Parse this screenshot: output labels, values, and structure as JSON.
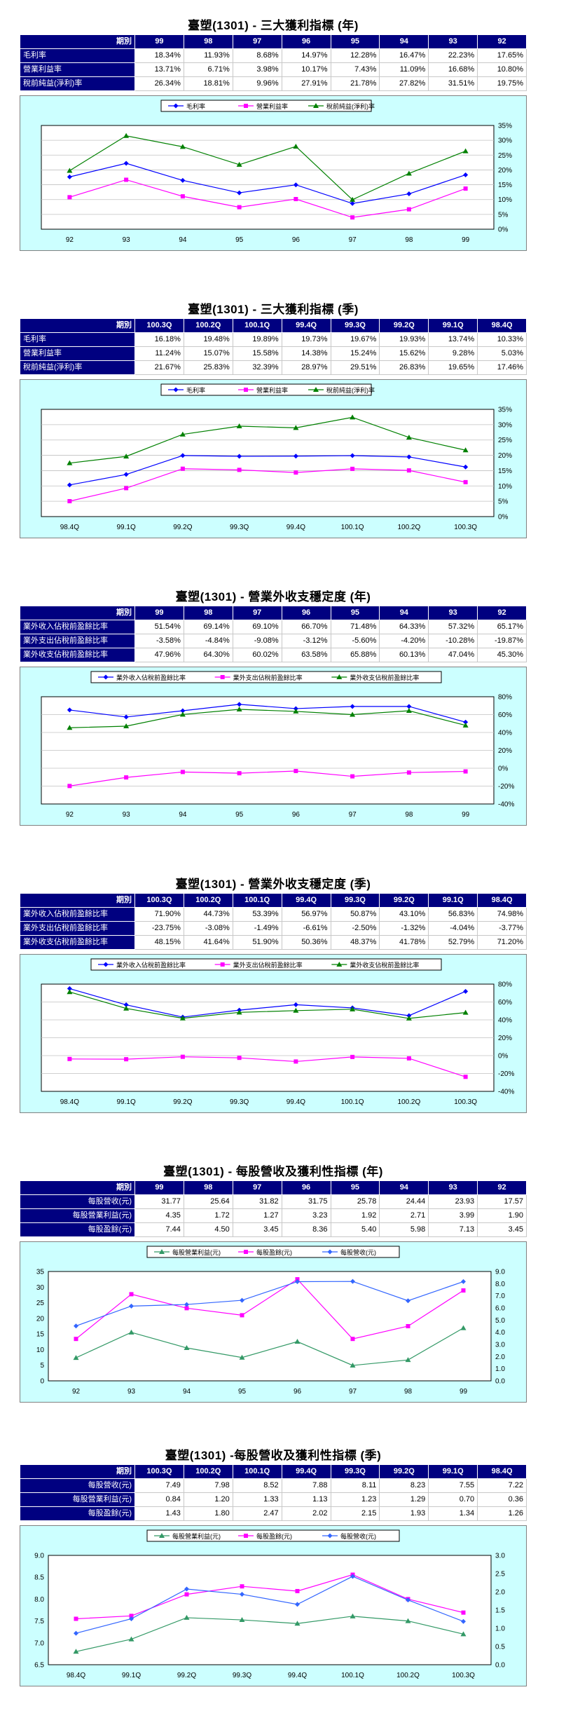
{
  "sections": [
    {
      "title": "臺塑(1301) - 三大獲利指標 (年)",
      "period_label": "期別",
      "label_align": "left",
      "periods": [
        "99",
        "98",
        "97",
        "96",
        "95",
        "94",
        "93",
        "92"
      ],
      "rows": [
        {
          "label": "毛利率",
          "values": [
            "18.34%",
            "11.93%",
            "8.68%",
            "14.97%",
            "12.28%",
            "16.47%",
            "22.23%",
            "17.65%"
          ]
        },
        {
          "label": "營業利益率",
          "values": [
            "13.71%",
            "6.71%",
            "3.98%",
            "10.17%",
            "7.43%",
            "11.09%",
            "16.68%",
            "10.80%"
          ]
        },
        {
          "label": "稅前純益(淨利)率",
          "values": [
            "26.34%",
            "18.81%",
            "9.96%",
            "27.91%",
            "21.78%",
            "27.82%",
            "31.51%",
            "19.75%"
          ]
        }
      ]
    },
    {
      "title": "臺塑(1301) - 三大獲利指標 (季)",
      "period_label": "期別",
      "label_align": "left",
      "periods": [
        "100.3Q",
        "100.2Q",
        "100.1Q",
        "99.4Q",
        "99.3Q",
        "99.2Q",
        "99.1Q",
        "98.4Q"
      ],
      "rows": [
        {
          "label": "毛利率",
          "values": [
            "16.18%",
            "19.48%",
            "19.89%",
            "19.73%",
            "19.67%",
            "19.93%",
            "13.74%",
            "10.33%"
          ]
        },
        {
          "label": "營業利益率",
          "values": [
            "11.24%",
            "15.07%",
            "15.58%",
            "14.38%",
            "15.24%",
            "15.62%",
            "9.28%",
            "5.03%"
          ]
        },
        {
          "label": "稅前純益(淨利)率",
          "values": [
            "21.67%",
            "25.83%",
            "32.39%",
            "28.97%",
            "29.51%",
            "26.83%",
            "19.65%",
            "17.46%"
          ]
        }
      ]
    },
    {
      "title": "臺塑(1301) - 營業外收支穩定度 (年)",
      "period_label": "期別",
      "label_align": "left",
      "periods": [
        "99",
        "98",
        "97",
        "96",
        "95",
        "94",
        "93",
        "92"
      ],
      "rows": [
        {
          "label": "業外收入佔稅前盈餘比率",
          "values": [
            "51.54%",
            "69.14%",
            "69.10%",
            "66.70%",
            "71.48%",
            "64.33%",
            "57.32%",
            "65.17%"
          ]
        },
        {
          "label": "業外支出佔稅前盈餘比率",
          "values": [
            "-3.58%",
            "-4.84%",
            "-9.08%",
            "-3.12%",
            "-5.60%",
            "-4.20%",
            "-10.28%",
            "-19.87%"
          ]
        },
        {
          "label": "業外收支佔稅前盈餘比率",
          "values": [
            "47.96%",
            "64.30%",
            "60.02%",
            "63.58%",
            "65.88%",
            "60.13%",
            "47.04%",
            "45.30%"
          ]
        }
      ]
    },
    {
      "title": "臺塑(1301) - 營業外收支穩定度 (季)",
      "period_label": "期別",
      "label_align": "left",
      "periods": [
        "100.3Q",
        "100.2Q",
        "100.1Q",
        "99.4Q",
        "99.3Q",
        "99.2Q",
        "99.1Q",
        "98.4Q"
      ],
      "rows": [
        {
          "label": "業外收入佔稅前盈餘比率",
          "values": [
            "71.90%",
            "44.73%",
            "53.39%",
            "56.97%",
            "50.87%",
            "43.10%",
            "56.83%",
            "74.98%"
          ]
        },
        {
          "label": "業外支出佔稅前盈餘比率",
          "values": [
            "-23.75%",
            "-3.08%",
            "-1.49%",
            "-6.61%",
            "-2.50%",
            "-1.32%",
            "-4.04%",
            "-3.77%"
          ]
        },
        {
          "label": "業外收支佔稅前盈餘比率",
          "values": [
            "48.15%",
            "41.64%",
            "51.90%",
            "50.36%",
            "48.37%",
            "41.78%",
            "52.79%",
            "71.20%"
          ]
        }
      ]
    },
    {
      "title": "臺塑(1301) - 每股營收及獲利性指標 (年)",
      "period_label": "期別",
      "label_align": "right",
      "periods": [
        "99",
        "98",
        "97",
        "96",
        "95",
        "94",
        "93",
        "92"
      ],
      "rows": [
        {
          "label": "每股營收(元)",
          "values": [
            "31.77",
            "25.64",
            "31.82",
            "31.75",
            "25.78",
            "24.44",
            "23.93",
            "17.57"
          ]
        },
        {
          "label": "每股營業利益(元)",
          "values": [
            "4.35",
            "1.72",
            "1.27",
            "3.23",
            "1.92",
            "2.71",
            "3.99",
            "1.90"
          ]
        },
        {
          "label": "每股盈餘(元)",
          "values": [
            "7.44",
            "4.50",
            "3.45",
            "8.36",
            "5.40",
            "5.98",
            "7.13",
            "3.45"
          ]
        }
      ]
    },
    {
      "title": "臺塑(1301) -每股營收及獲利性指標 (季)",
      "period_label": "期別",
      "label_align": "right",
      "periods": [
        "100.3Q",
        "100.2Q",
        "100.1Q",
        "99.4Q",
        "99.3Q",
        "99.2Q",
        "99.1Q",
        "98.4Q"
      ],
      "rows": [
        {
          "label": "每股營收(元)",
          "values": [
            "7.49",
            "7.98",
            "8.52",
            "7.88",
            "8.11",
            "8.23",
            "7.55",
            "7.22"
          ]
        },
        {
          "label": "每股營業利益(元)",
          "values": [
            "0.84",
            "1.20",
            "1.33",
            "1.13",
            "1.23",
            "1.29",
            "0.70",
            "0.36"
          ]
        },
        {
          "label": "每股盈餘(元)",
          "values": [
            "1.43",
            "1.80",
            "2.47",
            "2.02",
            "2.15",
            "1.93",
            "1.34",
            "1.26"
          ]
        }
      ]
    }
  ],
  "chart_data": [
    {
      "type": "line",
      "categories": [
        "92",
        "93",
        "94",
        "95",
        "96",
        "97",
        "98",
        "99"
      ],
      "series": [
        {
          "name": "毛利率",
          "values": [
            17.65,
            22.23,
            16.47,
            12.28,
            14.97,
            8.68,
            11.93,
            18.34
          ],
          "color": "#0000ff",
          "marker": "diamond"
        },
        {
          "name": "營業利益率",
          "values": [
            10.8,
            16.68,
            11.09,
            7.43,
            10.17,
            3.98,
            6.71,
            13.71
          ],
          "color": "#ff00ff",
          "marker": "square"
        },
        {
          "name": "稅前純益(淨利)率",
          "values": [
            19.75,
            31.51,
            27.82,
            21.78,
            27.91,
            9.96,
            18.81,
            26.34
          ],
          "color": "#008000",
          "marker": "triangle"
        }
      ],
      "y_axis": "right",
      "ylim": [
        0,
        35
      ],
      "yticks": [
        "0%",
        "5%",
        "10%",
        "15%",
        "20%",
        "25%",
        "30%",
        "35%"
      ],
      "legend_position": "top",
      "grid": true
    },
    {
      "type": "line",
      "categories": [
        "98.4Q",
        "99.1Q",
        "99.2Q",
        "99.3Q",
        "99.4Q",
        "100.1Q",
        "100.2Q",
        "100.3Q"
      ],
      "series": [
        {
          "name": "毛利率",
          "values": [
            10.33,
            13.74,
            19.93,
            19.67,
            19.73,
            19.89,
            19.48,
            16.18
          ],
          "color": "#0000ff",
          "marker": "diamond"
        },
        {
          "name": "營業利益率",
          "values": [
            5.03,
            9.28,
            15.62,
            15.24,
            14.38,
            15.58,
            15.07,
            11.24
          ],
          "color": "#ff00ff",
          "marker": "square"
        },
        {
          "name": "稅前純益(淨利)率",
          "values": [
            17.46,
            19.65,
            26.83,
            29.51,
            28.97,
            32.39,
            25.83,
            21.67
          ],
          "color": "#008000",
          "marker": "triangle"
        }
      ],
      "y_axis": "right",
      "ylim": [
        0,
        35
      ],
      "yticks": [
        "0%",
        "5%",
        "10%",
        "15%",
        "20%",
        "25%",
        "30%",
        "35%"
      ],
      "legend_position": "top",
      "grid": true
    },
    {
      "type": "line",
      "categories": [
        "92",
        "93",
        "94",
        "95",
        "96",
        "97",
        "98",
        "99"
      ],
      "series": [
        {
          "name": "業外收入佔稅前盈餘比率",
          "values": [
            65.17,
            57.32,
            64.33,
            71.48,
            66.7,
            69.1,
            69.14,
            51.54
          ],
          "color": "#0000ff",
          "marker": "diamond"
        },
        {
          "name": "業外支出佔稅前盈餘比率",
          "values": [
            -19.87,
            -10.28,
            -4.2,
            -5.6,
            -3.12,
            -9.08,
            -4.84,
            -3.58
          ],
          "color": "#ff00ff",
          "marker": "square"
        },
        {
          "name": "業外收支佔稅前盈餘比率",
          "values": [
            45.3,
            47.04,
            60.13,
            65.88,
            63.58,
            60.02,
            64.3,
            47.96
          ],
          "color": "#008000",
          "marker": "triangle"
        }
      ],
      "y_axis": "right",
      "ylim": [
        -40,
        80
      ],
      "yticks": [
        "-40%",
        "-20%",
        "0%",
        "20%",
        "40%",
        "60%",
        "80%"
      ],
      "legend_position": "top",
      "grid": true
    },
    {
      "type": "line",
      "categories": [
        "98.4Q",
        "99.1Q",
        "99.2Q",
        "99.3Q",
        "99.4Q",
        "100.1Q",
        "100.2Q",
        "100.3Q"
      ],
      "series": [
        {
          "name": "業外收入佔稅前盈餘比率",
          "values": [
            74.98,
            56.83,
            43.1,
            50.87,
            56.97,
            53.39,
            44.73,
            71.9
          ],
          "color": "#0000ff",
          "marker": "diamond"
        },
        {
          "name": "業外支出佔稅前盈餘比率",
          "values": [
            -3.77,
            -4.04,
            -1.32,
            -2.5,
            -6.61,
            -1.49,
            -3.08,
            -23.75
          ],
          "color": "#ff00ff",
          "marker": "square"
        },
        {
          "name": "業外收支佔稅前盈餘比率",
          "values": [
            71.2,
            52.79,
            41.78,
            48.37,
            50.36,
            51.9,
            41.64,
            48.15
          ],
          "color": "#008000",
          "marker": "triangle"
        }
      ],
      "y_axis": "right",
      "ylim": [
        -40,
        80
      ],
      "yticks": [
        "-40%",
        "-20%",
        "0%",
        "20%",
        "40%",
        "60%",
        "80%"
      ],
      "legend_position": "top",
      "grid": true
    },
    {
      "type": "line",
      "categories": [
        "92",
        "93",
        "94",
        "95",
        "96",
        "97",
        "98",
        "99"
      ],
      "series": [
        {
          "name": "每股營業利益(元)",
          "values": [
            1.9,
            3.99,
            2.71,
            1.92,
            3.23,
            1.27,
            1.72,
            4.35
          ],
          "color": "#339966",
          "marker": "triangle",
          "axis": "right"
        },
        {
          "name": "每股盈餘(元)",
          "values": [
            3.45,
            7.13,
            5.98,
            5.4,
            8.36,
            3.45,
            4.5,
            7.44
          ],
          "color": "#ff00ff",
          "marker": "square",
          "axis": "right"
        },
        {
          "name": "每股營收(元)",
          "values": [
            17.57,
            23.93,
            24.44,
            25.78,
            31.75,
            31.82,
            25.64,
            31.77
          ],
          "color": "#3366ff",
          "marker": "diamond",
          "axis": "left"
        }
      ],
      "ylim_left": [
        0,
        35
      ],
      "yticks_left": [
        "0",
        "5",
        "10",
        "15",
        "20",
        "25",
        "30",
        "35"
      ],
      "ylim_right": [
        0,
        9
      ],
      "yticks_right": [
        "0.0",
        "1.0",
        "2.0",
        "3.0",
        "4.0",
        "5.0",
        "6.0",
        "7.0",
        "8.0",
        "9.0"
      ],
      "legend_position": "top",
      "grid": false
    },
    {
      "type": "line",
      "categories": [
        "98.4Q",
        "99.1Q",
        "99.2Q",
        "99.3Q",
        "99.4Q",
        "100.1Q",
        "100.2Q",
        "100.3Q"
      ],
      "series": [
        {
          "name": "每股營業利益(元)",
          "values": [
            0.36,
            0.7,
            1.29,
            1.23,
            1.13,
            1.33,
            1.2,
            0.84
          ],
          "color": "#339966",
          "marker": "triangle",
          "axis": "right"
        },
        {
          "name": "每股盈餘(元)",
          "values": [
            1.26,
            1.34,
            1.93,
            2.15,
            2.02,
            2.47,
            1.8,
            1.43
          ],
          "color": "#ff00ff",
          "marker": "square",
          "axis": "right"
        },
        {
          "name": "每股營收(元)",
          "values": [
            7.22,
            7.55,
            8.23,
            8.11,
            7.88,
            8.52,
            7.98,
            7.49
          ],
          "color": "#3366ff",
          "marker": "diamond",
          "axis": "left"
        }
      ],
      "ylim_left": [
        6.5,
        9.0
      ],
      "yticks_left": [
        "6.5",
        "7.0",
        "7.5",
        "8.0",
        "8.5",
        "9.0"
      ],
      "ylim_right": [
        0,
        3
      ],
      "yticks_right": [
        "0.0",
        "0.5",
        "1.0",
        "1.5",
        "2.0",
        "2.5",
        "3.0"
      ],
      "legend_position": "top",
      "grid": false
    }
  ]
}
